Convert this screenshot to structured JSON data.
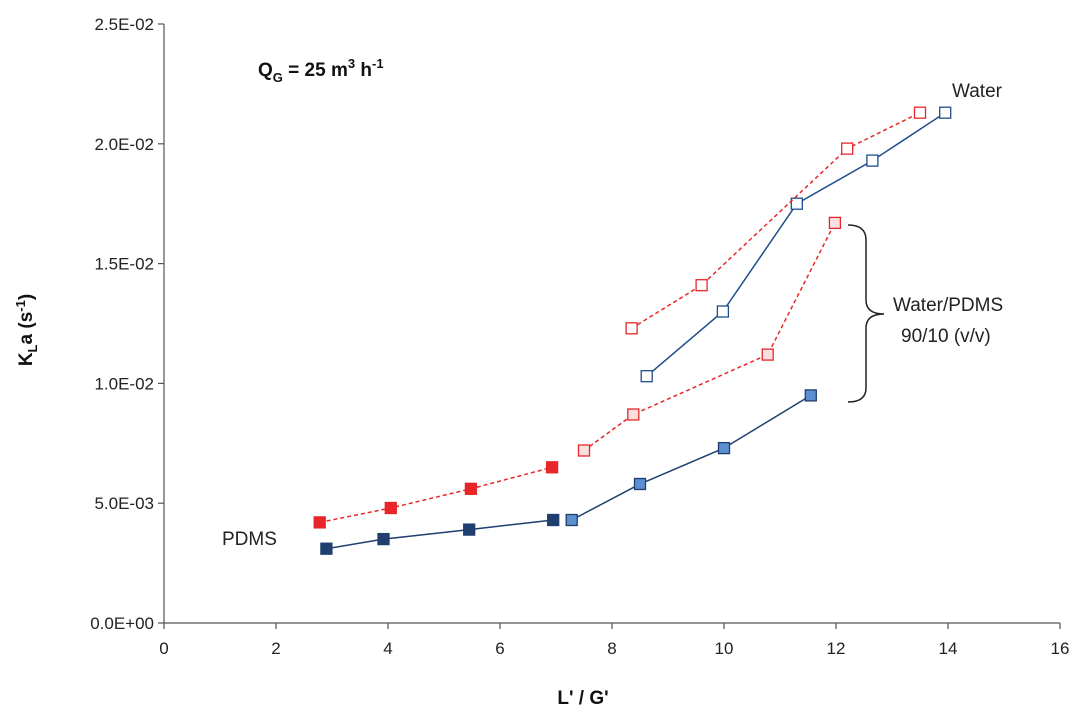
{
  "chart_data": {
    "type": "line",
    "xlabel": "L' / G'",
    "ylabel": {
      "main": "K",
      "sub": "L",
      "after": "a",
      "unit_open": " (s",
      "unit_sup": "-1",
      "unit_close": ")"
    },
    "xlim": [
      0,
      16
    ],
    "ylim": [
      0,
      0.025
    ],
    "x_ticks": [
      0,
      2,
      4,
      6,
      8,
      10,
      12,
      14,
      16
    ],
    "x_tick_labels": [
      "0",
      "2",
      "4",
      "6",
      "8",
      "10",
      "12",
      "14",
      "16"
    ],
    "y_ticks": [
      0,
      0.005,
      0.01,
      0.015,
      0.02,
      0.025
    ],
    "y_tick_labels": [
      "0.0E+00",
      "5.0E-03",
      "1.0E-02",
      "1.5E-02",
      "2.0E-02",
      "2.5E-02"
    ],
    "grid": false,
    "legend": "none",
    "series": [
      {
        "label_key": "pdms_blue",
        "color": "#1f3f6e",
        "fill": "#1f3f6e",
        "marker": "filled-square",
        "line": "solid",
        "points": [
          [
            2.9,
            0.0031
          ],
          [
            3.92,
            0.0035
          ],
          [
            5.45,
            0.0039
          ],
          [
            6.95,
            0.0043
          ]
        ]
      },
      {
        "label_key": "mix_blue",
        "color": "#1f3f6e",
        "fill": "#5b8fcf",
        "marker": "filled-square",
        "line": "solid",
        "points": [
          [
            7.28,
            0.0043
          ],
          [
            8.5,
            0.0058
          ],
          [
            10.0,
            0.0073
          ],
          [
            11.55,
            0.0095
          ]
        ]
      },
      {
        "label_key": "water_blue",
        "color": "#1f4e8c",
        "fill": "#ffffff",
        "marker": "open-square",
        "line": "solid",
        "points": [
          [
            8.62,
            0.0103
          ],
          [
            9.98,
            0.013
          ],
          [
            11.3,
            0.0175
          ],
          [
            12.65,
            0.0193
          ],
          [
            13.95,
            0.0213
          ]
        ]
      },
      {
        "label_key": "pdms_red",
        "color": "#e8262a",
        "fill": "#e8262a",
        "marker": "filled-square",
        "line": "dashed",
        "points": [
          [
            2.78,
            0.0042
          ],
          [
            4.05,
            0.0048
          ],
          [
            5.48,
            0.0056
          ],
          [
            6.93,
            0.0065
          ]
        ]
      },
      {
        "label_key": "mix_red",
        "color": "#e8262a",
        "fill": "#fbe0e0",
        "marker": "open-square",
        "line": "dashed",
        "points": [
          [
            7.5,
            0.0072
          ],
          [
            8.38,
            0.0087
          ],
          [
            10.78,
            0.0112
          ],
          [
            11.98,
            0.0167
          ]
        ]
      },
      {
        "label_key": "water_red",
        "color": "#e8262a",
        "fill": "#ffffff",
        "marker": "open-square",
        "line": "dashed",
        "points": [
          [
            8.35,
            0.0123
          ],
          [
            9.6,
            0.0141
          ],
          [
            12.2,
            0.0198
          ],
          [
            13.5,
            0.0213
          ]
        ]
      }
    ],
    "annotations": {
      "qg": {
        "q": "Q",
        "q_sub": "G",
        "eq": " = 25 m",
        "m_sup": "3",
        "h": " h",
        "h_sup": "-1"
      },
      "water": "Water",
      "mix_line1": "Water/PDMS",
      "mix_line2": "90/10 (v/v)",
      "pdms": "PDMS"
    }
  }
}
